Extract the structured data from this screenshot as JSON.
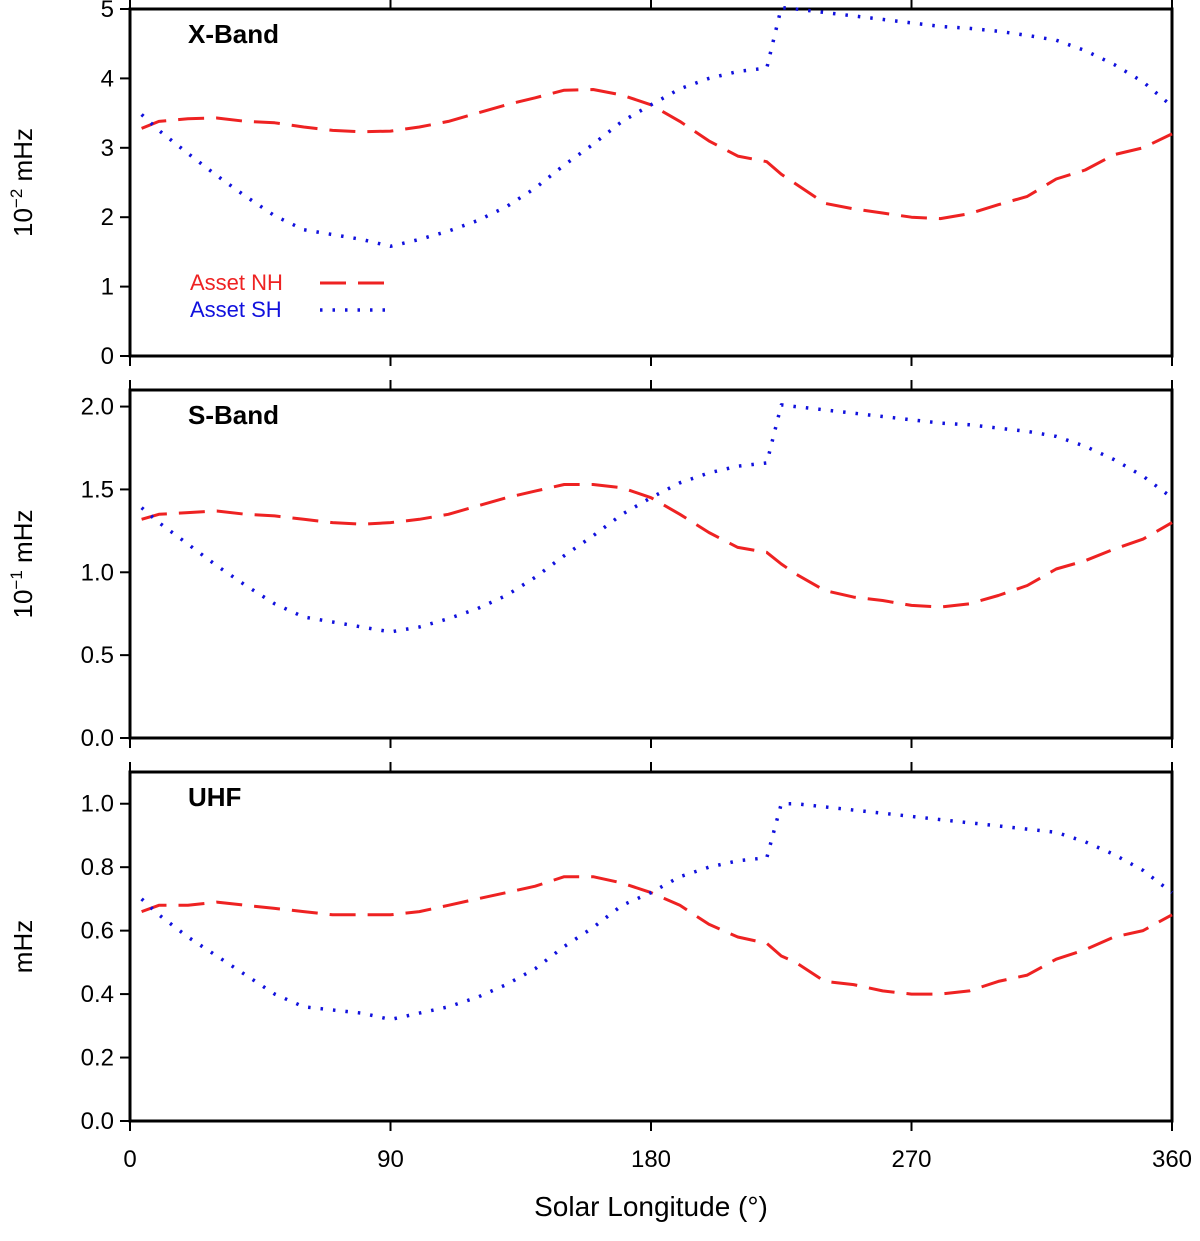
{
  "chart_data": {
    "type": "line",
    "xlabel": "Solar Longitude (°)",
    "xlim": [
      0,
      360
    ],
    "xticks": [
      0,
      90,
      180,
      270,
      360
    ],
    "colors": {
      "nh": "#ee2222",
      "sh": "#1111dd"
    },
    "legend": {
      "placement": "lower-left of top panel",
      "entries": [
        {
          "name": "Asset NH",
          "color": "#ee2222",
          "style": "dashed"
        },
        {
          "name": "Asset SH",
          "color": "#1111dd",
          "style": "dotted"
        }
      ]
    },
    "x": [
      4,
      10,
      20,
      30,
      40,
      50,
      60,
      70,
      80,
      90,
      100,
      110,
      120,
      130,
      140,
      150,
      160,
      170,
      180,
      190,
      200,
      210,
      220,
      225,
      230,
      240,
      250,
      260,
      270,
      280,
      290,
      300,
      310,
      320,
      330,
      340,
      350,
      360
    ],
    "panels": [
      {
        "title": "X-Band",
        "ylabel_base": "10",
        "ylabel_exp": "−2",
        "ylabel_unit": " mHz",
        "ylim": [
          0,
          5
        ],
        "yticks": [
          0,
          1,
          2,
          3,
          4,
          5
        ],
        "ytick_labels": [
          "0",
          "1",
          "2",
          "3",
          "4",
          "5"
        ],
        "series": [
          {
            "name": "Asset NH",
            "values": [
              3.28,
              3.38,
              3.42,
              3.43,
              3.38,
              3.36,
              3.3,
              3.25,
              3.23,
              3.24,
              3.3,
              3.38,
              3.5,
              3.62,
              3.72,
              3.83,
              3.84,
              3.76,
              3.62,
              3.38,
              3.1,
              2.88,
              2.8,
              2.62,
              2.48,
              2.2,
              2.12,
              2.06,
              2.0,
              1.98,
              2.05,
              2.18,
              2.3,
              2.55,
              2.68,
              2.9,
              3.0,
              3.2
            ]
          },
          {
            "name": "Asset SH",
            "values": [
              3.48,
              3.25,
              2.92,
              2.6,
              2.3,
              2.02,
              1.82,
              1.75,
              1.68,
              1.58,
              1.68,
              1.8,
              1.95,
              2.15,
              2.42,
              2.75,
              3.05,
              3.38,
              3.62,
              3.85,
              4.0,
              4.1,
              4.15,
              5.02,
              5.0,
              4.95,
              4.9,
              4.85,
              4.8,
              4.75,
              4.72,
              4.68,
              4.62,
              4.55,
              4.4,
              4.2,
              3.95,
              3.6
            ]
          }
        ]
      },
      {
        "title": "S-Band",
        "ylabel_base": "10",
        "ylabel_exp": "−1",
        "ylabel_unit": " mHz",
        "ylim": [
          0,
          2.1
        ],
        "yticks": [
          0,
          0.5,
          1.0,
          1.5,
          2.0
        ],
        "ytick_labels": [
          "0.0",
          "0.5",
          "1.0",
          "1.5",
          "2.0"
        ],
        "series": [
          {
            "name": "Asset NH",
            "values": [
              1.32,
              1.35,
              1.36,
              1.37,
              1.35,
              1.34,
              1.32,
              1.3,
              1.29,
              1.3,
              1.32,
              1.35,
              1.4,
              1.45,
              1.49,
              1.53,
              1.53,
              1.51,
              1.45,
              1.35,
              1.24,
              1.15,
              1.12,
              1.05,
              0.99,
              0.89,
              0.85,
              0.83,
              0.8,
              0.79,
              0.81,
              0.86,
              0.92,
              1.02,
              1.07,
              1.14,
              1.2,
              1.3
            ]
          },
          {
            "name": "Asset SH",
            "values": [
              1.39,
              1.3,
              1.17,
              1.04,
              0.92,
              0.81,
              0.73,
              0.7,
              0.67,
              0.64,
              0.67,
              0.72,
              0.78,
              0.86,
              0.97,
              1.1,
              1.22,
              1.35,
              1.45,
              1.54,
              1.6,
              1.64,
              1.66,
              2.01,
              2.0,
              1.98,
              1.96,
              1.94,
              1.92,
              1.9,
              1.89,
              1.87,
              1.85,
              1.82,
              1.76,
              1.68,
              1.58,
              1.45
            ]
          }
        ]
      },
      {
        "title": "UHF",
        "ylabel_base": "",
        "ylabel_exp": "",
        "ylabel_unit": "mHz",
        "ylim": [
          0,
          1.1
        ],
        "yticks": [
          0,
          0.2,
          0.4,
          0.6,
          0.8,
          1.0
        ],
        "ytick_labels": [
          "0.0",
          "0.2",
          "0.4",
          "0.6",
          "0.8",
          "1.0"
        ],
        "series": [
          {
            "name": "Asset NH",
            "values": [
              0.66,
              0.68,
              0.68,
              0.69,
              0.68,
              0.67,
              0.66,
              0.65,
              0.65,
              0.65,
              0.66,
              0.68,
              0.7,
              0.72,
              0.74,
              0.77,
              0.77,
              0.75,
              0.72,
              0.68,
              0.62,
              0.58,
              0.56,
              0.52,
              0.5,
              0.44,
              0.43,
              0.41,
              0.4,
              0.4,
              0.41,
              0.44,
              0.46,
              0.51,
              0.54,
              0.58,
              0.6,
              0.65
            ]
          },
          {
            "name": "Asset SH",
            "values": [
              0.7,
              0.65,
              0.58,
              0.52,
              0.46,
              0.4,
              0.36,
              0.35,
              0.34,
              0.32,
              0.34,
              0.36,
              0.39,
              0.43,
              0.48,
              0.55,
              0.61,
              0.68,
              0.72,
              0.77,
              0.8,
              0.82,
              0.83,
              1.0,
              1.0,
              0.99,
              0.98,
              0.97,
              0.96,
              0.95,
              0.94,
              0.93,
              0.92,
              0.91,
              0.88,
              0.84,
              0.79,
              0.72
            ]
          }
        ]
      }
    ]
  }
}
